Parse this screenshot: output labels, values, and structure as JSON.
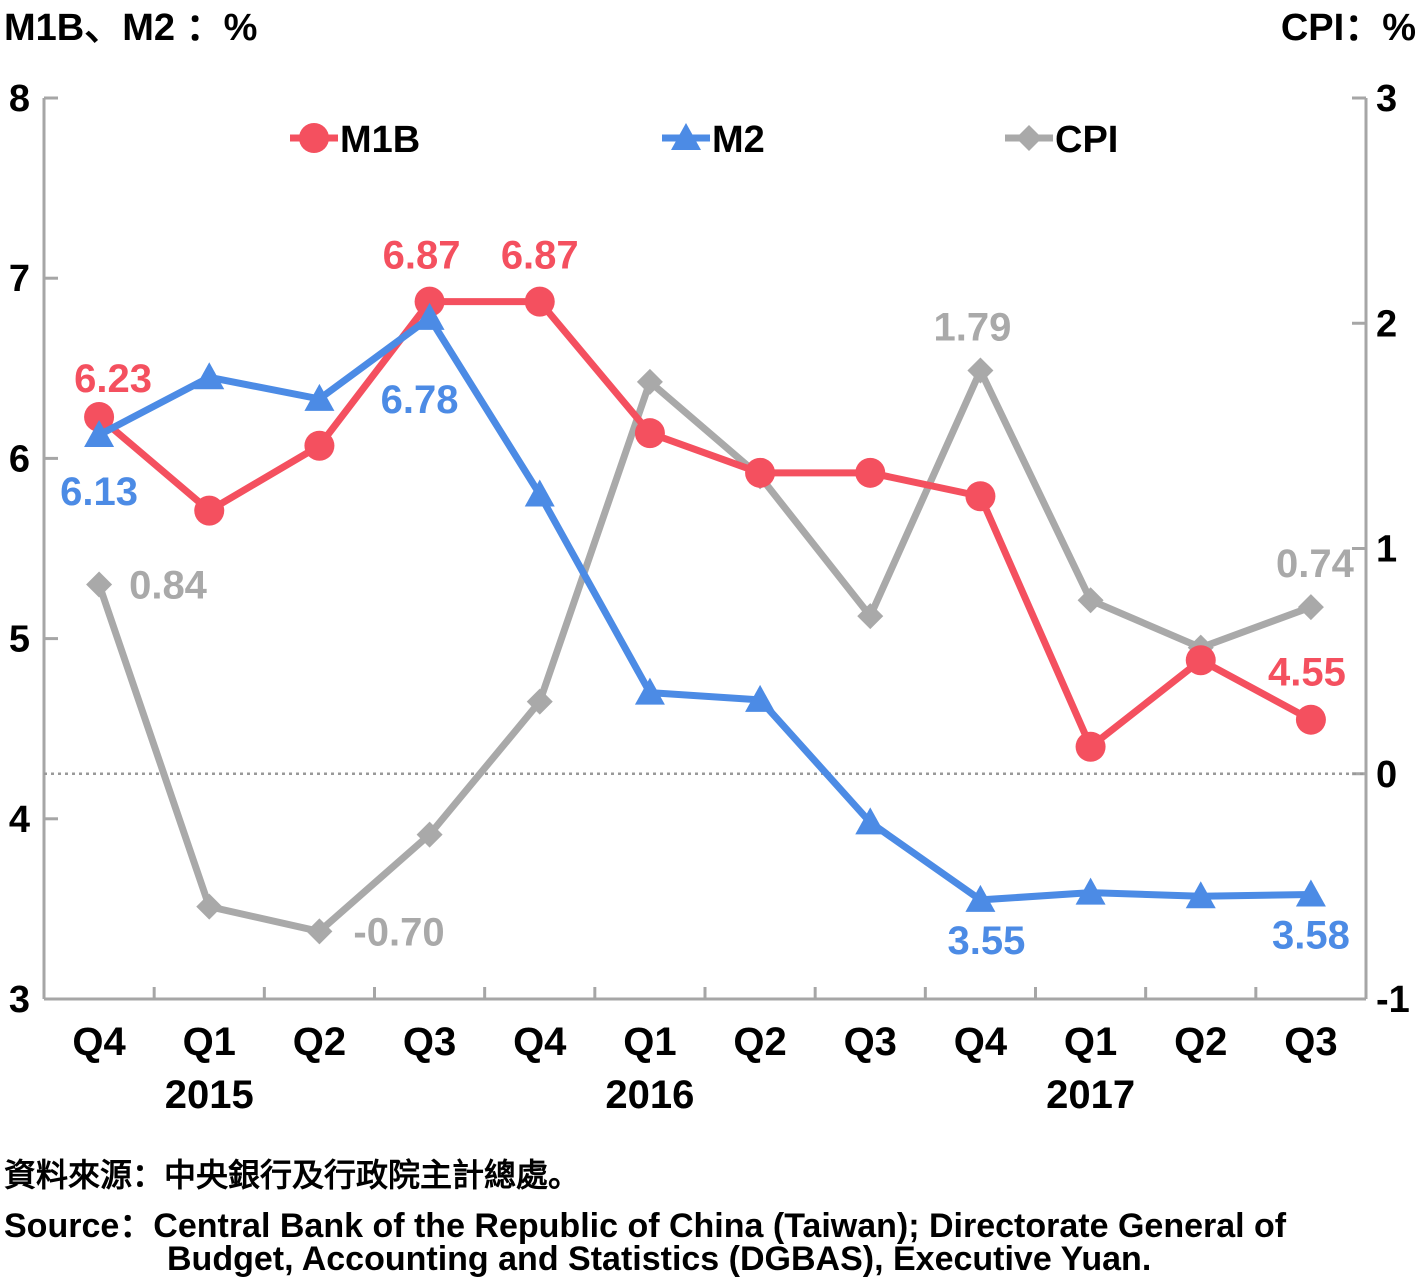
{
  "chart_data": {
    "type": "line",
    "left_axis_title": "M1B、M2 ：%",
    "right_axis_title": "CPI：%",
    "left_ylim": [
      3,
      8
    ],
    "left_ticks": [
      "3",
      "4",
      "5",
      "6",
      "7",
      "8"
    ],
    "right_ylim": [
      -1,
      3
    ],
    "right_ticks": [
      "-1",
      "0",
      "1",
      "2",
      "3"
    ],
    "categories": [
      "Q4",
      "Q1",
      "Q2",
      "Q3",
      "Q4",
      "Q1",
      "Q2",
      "Q3",
      "Q4",
      "Q1",
      "Q2",
      "Q3"
    ],
    "years": [
      {
        "label": "2015",
        "center_index": 1
      },
      {
        "label": "2016",
        "center_index": 5
      },
      {
        "label": "2017",
        "center_index": 9
      }
    ],
    "series": [
      {
        "name": "M1B",
        "axis": "left",
        "color": "#f4505f",
        "marker": "circle",
        "values": [
          6.23,
          5.71,
          6.07,
          6.87,
          6.87,
          6.14,
          5.92,
          5.92,
          5.79,
          4.4,
          4.88,
          4.55
        ]
      },
      {
        "name": "M2",
        "axis": "left",
        "color": "#4c8be5",
        "marker": "triangle",
        "values": [
          6.13,
          6.45,
          6.33,
          6.78,
          5.8,
          4.7,
          4.66,
          3.98,
          3.55,
          3.59,
          3.57,
          3.58
        ]
      },
      {
        "name": "CPI",
        "axis": "right",
        "color": "#a9a9a9",
        "marker": "diamond",
        "values": [
          0.84,
          -0.59,
          -0.7,
          -0.27,
          0.32,
          1.74,
          1.32,
          0.7,
          1.79,
          0.77,
          0.56,
          0.74
        ]
      }
    ],
    "data_labels": [
      {
        "series": "M1B",
        "index": 0,
        "text": "6.23"
      },
      {
        "series": "M1B",
        "index": 3,
        "text": "6.87"
      },
      {
        "series": "M1B",
        "index": 4,
        "text": "6.87"
      },
      {
        "series": "M1B",
        "index": 11,
        "text": "4.55"
      },
      {
        "series": "M2",
        "index": 0,
        "text": "6.13"
      },
      {
        "series": "M2",
        "index": 3,
        "text": "6.78"
      },
      {
        "series": "M2",
        "index": 8,
        "text": "3.55"
      },
      {
        "series": "M2",
        "index": 11,
        "text": "3.58"
      },
      {
        "series": "CPI",
        "index": 0,
        "text": "0.84"
      },
      {
        "series": "CPI",
        "index": 2,
        "text": "-0.70"
      },
      {
        "series": "CPI",
        "index": 8,
        "text": "1.79"
      },
      {
        "series": "CPI",
        "index": 11,
        "text": "0.74"
      }
    ],
    "reference_line": {
      "axis": "right",
      "value": 0,
      "style": "dotted"
    },
    "legend": [
      "M1B",
      "M2",
      "CPI"
    ],
    "legend_position": "top"
  },
  "source": {
    "zh": "資料來源：中央銀行及行政院主計總處。",
    "en_line1": "Source：Central Bank of the Republic of China (Taiwan); Directorate General of",
    "en_line2": "Budget, Accounting and Statistics (DGBAS), Executive Yuan."
  }
}
